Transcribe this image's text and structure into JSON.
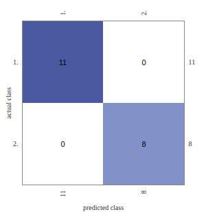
{
  "chart_data": {
    "type": "heatmap",
    "x_label": "predicted class",
    "y_label": "actual class",
    "x_categories": [
      "1.",
      "2."
    ],
    "y_categories": [
      "1.",
      "2."
    ],
    "cells": [
      [
        11,
        0
      ],
      [
        0,
        8
      ]
    ],
    "colors": [
      "#4b5aa0",
      "#ffffff",
      "#ffffff",
      "#8391c9"
    ],
    "row_totals": [
      11,
      8
    ],
    "column_totals": [
      11,
      8
    ],
    "data_labels": true
  }
}
